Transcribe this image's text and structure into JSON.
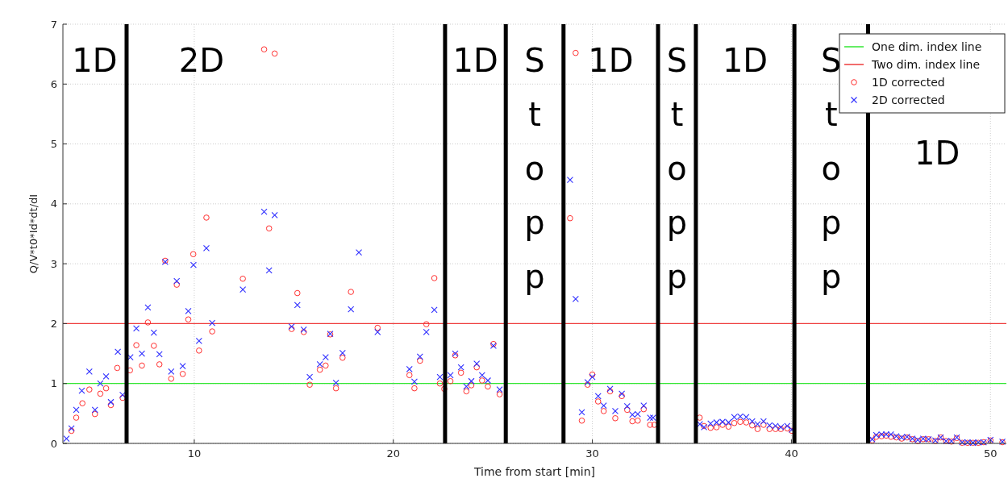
{
  "chart_data": {
    "type": "scatter",
    "xlabel": "Time from start [min]",
    "ylabel": "Q/V*t0*Id*dt/dI",
    "xlim": [
      3.4,
      50.8
    ],
    "xticks": [
      10,
      20,
      30,
      40,
      50
    ],
    "ylim": [
      0,
      7
    ],
    "yticks": [
      0,
      1,
      2,
      3,
      4,
      5,
      6,
      7
    ],
    "grid": true,
    "legend": "top right",
    "series": [
      {
        "name": "One dim. index line",
        "type": "line",
        "color": "#33e633",
        "line_style": "solid",
        "marker": "none",
        "x": [
          3.4,
          50.8
        ],
        "values": [
          1,
          1
        ]
      },
      {
        "name": "Two dim. index line",
        "type": "line",
        "color": "#ee3b3b",
        "line_style": "solid",
        "marker": "none",
        "x": [
          3.4,
          50.8
        ],
        "values": [
          2,
          2
        ]
      },
      {
        "name": "1D corrected",
        "color": "#ff3030",
        "marker": "circle",
        "x": [
          3.83,
          4.07,
          4.38,
          4.73,
          5.01,
          5.28,
          5.57,
          5.81,
          6.13,
          6.4,
          6.77,
          7.09,
          7.37,
          7.67,
          7.97,
          8.25,
          8.54,
          8.84,
          9.12,
          9.42,
          9.7,
          9.95,
          10.24,
          10.61,
          10.9,
          12.44,
          13.51,
          13.76,
          14.04,
          14.89,
          15.18,
          15.5,
          15.8,
          16.31,
          16.6,
          16.83,
          17.12,
          17.45,
          17.87,
          19.21,
          20.81,
          21.06,
          21.34,
          21.66,
          22.06,
          22.34,
          22.56,
          22.87,
          23.11,
          23.4,
          23.67,
          23.92,
          24.19,
          24.46,
          24.75,
          25.03,
          25.34,
          28.88,
          29.16,
          29.47,
          29.76,
          30.0,
          30.29,
          30.57,
          30.89,
          31.15,
          31.48,
          31.75,
          32.01,
          32.28,
          32.58,
          32.9,
          33.11,
          35.39,
          35.61,
          35.94,
          36.24,
          36.54,
          36.84,
          37.13,
          37.43,
          37.73,
          38.03,
          38.3,
          38.6,
          38.9,
          39.2,
          39.47,
          39.79,
          40.02,
          44.06,
          44.26,
          44.53,
          44.76,
          45.0,
          45.27,
          45.54,
          45.81,
          46.08,
          46.35,
          46.62,
          46.89,
          47.23,
          47.5,
          47.77,
          48.04,
          48.31,
          48.58,
          48.85,
          49.12,
          49.39,
          49.66,
          50.0,
          50.6
        ],
        "values": [
          0.21,
          0.43,
          0.67,
          0.9,
          0.49,
          0.83,
          0.92,
          0.64,
          1.26,
          0.76,
          1.22,
          1.64,
          1.3,
          2.02,
          1.63,
          1.32,
          3.05,
          1.08,
          2.65,
          1.16,
          2.07,
          3.16,
          1.55,
          3.77,
          1.87,
          2.75,
          6.58,
          3.59,
          6.51,
          1.91,
          2.51,
          1.86,
          0.98,
          1.23,
          1.3,
          1.82,
          0.92,
          1.43,
          2.53,
          1.93,
          1.14,
          0.92,
          1.38,
          1.99,
          2.76,
          1.0,
          0.91,
          1.04,
          1.47,
          1.18,
          0.87,
          0.97,
          1.27,
          1.05,
          0.95,
          1.66,
          0.82,
          3.76,
          6.52,
          0.38,
          0.98,
          1.15,
          0.7,
          0.54,
          0.87,
          0.42,
          0.79,
          0.56,
          0.37,
          0.38,
          0.57,
          0.31,
          0.31,
          0.43,
          0.29,
          0.26,
          0.27,
          0.31,
          0.28,
          0.34,
          0.36,
          0.35,
          0.3,
          0.24,
          0.31,
          0.24,
          0.24,
          0.24,
          0.25,
          0.21,
          0.05,
          0.11,
          0.12,
          0.13,
          0.11,
          0.1,
          0.08,
          0.1,
          0.07,
          0.04,
          0.07,
          0.07,
          0.04,
          0.1,
          0.04,
          0.03,
          0.09,
          0.01,
          0.01,
          0.01,
          0.01,
          0.02,
          0.05,
          0.02
        ]
      },
      {
        "name": "2D corrected",
        "color": "#3030ff",
        "marker": "cross",
        "x": [
          3.58,
          3.83,
          4.07,
          4.35,
          4.73,
          5.01,
          5.28,
          5.57,
          5.81,
          6.16,
          6.4,
          6.79,
          7.09,
          7.37,
          7.67,
          7.97,
          8.25,
          8.54,
          8.84,
          9.12,
          9.42,
          9.7,
          9.96,
          10.24,
          10.61,
          10.9,
          12.44,
          13.51,
          13.76,
          14.04,
          14.89,
          15.18,
          15.5,
          15.8,
          16.31,
          16.6,
          16.83,
          17.12,
          17.45,
          17.87,
          18.27,
          19.21,
          20.81,
          21.06,
          21.34,
          21.66,
          22.06,
          22.34,
          22.87,
          23.11,
          23.4,
          23.67,
          23.92,
          24.19,
          24.46,
          24.75,
          25.03,
          25.34,
          28.88,
          29.16,
          29.47,
          29.76,
          30.0,
          30.29,
          30.57,
          30.89,
          31.15,
          31.48,
          31.75,
          32.01,
          32.28,
          32.58,
          32.9,
          33.05,
          35.4,
          35.61,
          35.94,
          36.24,
          36.54,
          36.84,
          37.13,
          37.43,
          37.73,
          38.03,
          38.3,
          38.6,
          38.9,
          39.2,
          39.47,
          39.79,
          40.02,
          44.06,
          44.26,
          44.53,
          44.76,
          45.0,
          45.27,
          45.54,
          45.81,
          46.08,
          46.35,
          46.62,
          46.89,
          47.23,
          47.5,
          47.77,
          48.04,
          48.31,
          48.58,
          48.85,
          49.12,
          49.39,
          49.66,
          50.0,
          50.6
        ],
        "values": [
          0.08,
          0.25,
          0.56,
          0.88,
          1.2,
          0.56,
          1.0,
          1.12,
          0.69,
          1.53,
          0.81,
          1.44,
          1.92,
          1.5,
          2.27,
          1.85,
          1.49,
          3.03,
          1.2,
          2.71,
          1.29,
          2.21,
          2.98,
          1.71,
          3.26,
          2.01,
          2.57,
          3.87,
          2.89,
          3.81,
          1.95,
          2.31,
          1.9,
          1.11,
          1.32,
          1.44,
          1.83,
          1.01,
          1.51,
          2.24,
          3.19,
          1.86,
          1.24,
          1.03,
          1.45,
          1.86,
          2.23,
          1.11,
          1.14,
          1.5,
          1.27,
          0.95,
          1.04,
          1.33,
          1.14,
          1.05,
          1.63,
          0.9,
          4.4,
          2.41,
          0.52,
          1.02,
          1.11,
          0.79,
          0.63,
          0.91,
          0.54,
          0.83,
          0.62,
          0.48,
          0.49,
          0.63,
          0.43,
          0.43,
          0.32,
          0.27,
          0.33,
          0.35,
          0.36,
          0.35,
          0.44,
          0.45,
          0.44,
          0.37,
          0.32,
          0.37,
          0.3,
          0.29,
          0.27,
          0.29,
          0.23,
          0.07,
          0.14,
          0.15,
          0.15,
          0.15,
          0.12,
          0.1,
          0.11,
          0.08,
          0.06,
          0.08,
          0.07,
          0.05,
          0.1,
          0.04,
          0.04,
          0.1,
          0.02,
          0.02,
          0.01,
          0.02,
          0.02,
          0.06,
          0.03
        ]
      }
    ],
    "ref_lines": [
      {
        "axis": "x",
        "value": 6.6,
        "color": "#000000"
      },
      {
        "axis": "x",
        "value": 22.6,
        "color": "#000000"
      },
      {
        "axis": "x",
        "value": 25.65,
        "color": "#000000"
      },
      {
        "axis": "x",
        "value": 28.55,
        "color": "#000000"
      },
      {
        "axis": "x",
        "value": 33.3,
        "color": "#000000"
      },
      {
        "axis": "x",
        "value": 35.2,
        "color": "#000000"
      },
      {
        "axis": "x",
        "value": 40.15,
        "color": "#000000"
      },
      {
        "axis": "x",
        "value": 43.85,
        "color": "#000000"
      }
    ],
    "annotations": [
      "1D",
      "2D",
      "1D",
      "Stopp",
      "1D",
      "Stopp",
      "1D",
      "Stopp",
      "1D"
    ]
  }
}
